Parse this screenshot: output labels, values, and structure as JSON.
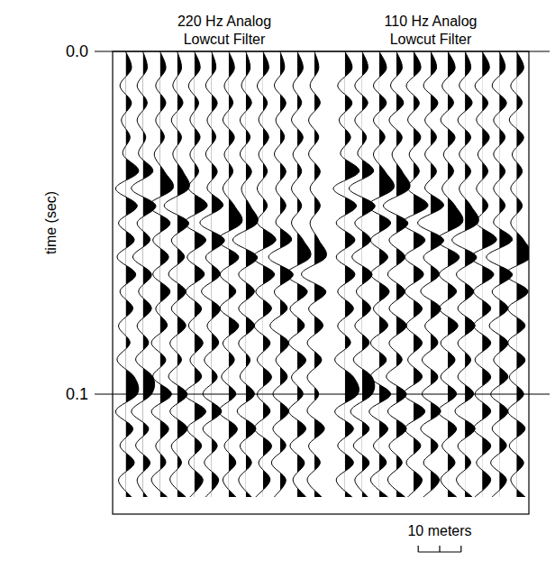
{
  "chart_data": {
    "type": "seismic",
    "y_label": "time (sec)",
    "ylim": [
      0,
      0.135
    ],
    "yticks": [
      {
        "value": 0,
        "label": "0.0"
      },
      0.1
    ],
    "grid": true,
    "time": [
      0,
      0.005,
      0.01,
      0.015,
      0.02,
      0.025,
      0.03,
      0.035,
      0.04,
      0.045,
      0.05,
      0.055,
      0.06,
      0.065,
      0.07,
      0.075,
      0.08,
      0.085,
      0.09,
      0.095,
      0.1,
      0.105,
      0.11,
      0.115,
      0.12,
      0.125,
      0.13
    ],
    "scale_bar": {
      "length": 10,
      "label": "10 meters"
    },
    "panels": [
      {
        "title": "220 Hz Analog Lowcut Filter",
        "xlim": [
          0,
          50
        ],
        "traces": [
          {
            "x": 2,
            "values": [
              0,
              0.4,
              -0.4,
              0.4,
              -0.3,
              0.3,
              -0.2,
              0.9,
              -0.7,
              0.8,
              -0.5,
              0.6,
              -0.6,
              0.7,
              -0.4,
              0.5,
              -0.5,
              0.3,
              -0.6,
              0.6,
              0.8,
              -0.7,
              0.5,
              -0.4,
              0.6,
              -0.5,
              0.4
            ]
          },
          {
            "x": 6,
            "values": [
              0,
              0.3,
              -0.4,
              0.3,
              -0.4,
              0.2,
              -0.3,
              0.7,
              -0.8,
              0.9,
              -0.4,
              0.5,
              -0.7,
              0.6,
              -0.3,
              0.6,
              -0.4,
              0.4,
              -0.5,
              0.7,
              0.6,
              -0.8,
              0.4,
              -0.5,
              0.5,
              -0.4,
              0.3
            ]
          },
          {
            "x": 10,
            "values": [
              0,
              0.4,
              -0.3,
              0.4,
              -0.3,
              0.3,
              -0.4,
              0.3,
              0.9,
              -0.8,
              0.7,
              -0.5,
              0.6,
              -0.5,
              0.7,
              -0.3,
              0.5,
              -0.6,
              0.4,
              -0.5,
              0.8,
              -0.6,
              0.6,
              -0.3,
              0.4,
              -0.6,
              0.5
            ]
          },
          {
            "x": 14,
            "values": [
              0,
              0.3,
              -0.3,
              0.4,
              -0.4,
              0.3,
              -0.3,
              0.4,
              0.8,
              -0.9,
              0.8,
              -0.4,
              0.5,
              -0.6,
              0.6,
              -0.4,
              0.6,
              -0.5,
              0.3,
              -0.6,
              0.7,
              -0.5,
              0.7,
              -0.4,
              0.3,
              -0.5,
              0.6
            ]
          },
          {
            "x": 18,
            "values": [
              0,
              0.4,
              -0.4,
              0.3,
              -0.3,
              0.4,
              -0.3,
              0.3,
              -0.4,
              0.9,
              -0.7,
              0.8,
              -0.5,
              0.7,
              -0.6,
              0.5,
              -0.4,
              0.6,
              -0.3,
              0.5,
              -0.7,
              0.8,
              -0.5,
              0.5,
              -0.4,
              0.6,
              -0.3
            ]
          },
          {
            "x": 22,
            "values": [
              0,
              0.3,
              -0.4,
              0.4,
              -0.3,
              0.3,
              -0.4,
              0.4,
              -0.3,
              0.8,
              -0.8,
              0.9,
              -0.4,
              0.6,
              -0.7,
              0.6,
              -0.3,
              0.5,
              -0.5,
              0.4,
              -0.6,
              0.7,
              -0.6,
              0.4,
              -0.5,
              0.5,
              -0.4
            ]
          },
          {
            "x": 26,
            "values": [
              0,
              0.4,
              -0.3,
              0.3,
              -0.4,
              0.4,
              -0.3,
              0.3,
              -0.4,
              0.4,
              0.9,
              -0.8,
              0.7,
              -0.6,
              0.5,
              -0.6,
              0.7,
              -0.4,
              0.4,
              -0.5,
              0.5,
              -0.7,
              0.6,
              -0.3,
              0.5,
              -0.4,
              0.5
            ]
          },
          {
            "x": 30,
            "values": [
              0,
              0.3,
              -0.3,
              0.4,
              -0.4,
              0.3,
              -0.4,
              0.4,
              -0.3,
              0.3,
              0.8,
              -0.9,
              0.8,
              -0.5,
              0.6,
              -0.5,
              0.6,
              -0.5,
              0.3,
              -0.4,
              0.6,
              -0.6,
              0.7,
              -0.4,
              0.4,
              -0.5,
              0.4
            ]
          },
          {
            "x": 34,
            "values": [
              0,
              0.4,
              -0.4,
              0.3,
              -0.3,
              0.4,
              -0.3,
              0.3,
              -0.4,
              0.3,
              -0.4,
              0.9,
              -0.7,
              0.8,
              -0.5,
              0.6,
              -0.6,
              0.5,
              -0.4,
              0.6,
              -0.4,
              0.5,
              -0.6,
              0.6,
              -0.3,
              0.5,
              -0.5
            ]
          },
          {
            "x": 38,
            "values": [
              0,
              0.3,
              -0.4,
              0.4,
              -0.3,
              0.3,
              -0.4,
              0.4,
              -0.3,
              0.4,
              -0.3,
              0.8,
              -0.8,
              0.9,
              -0.4,
              0.5,
              -0.7,
              0.6,
              -0.3,
              0.5,
              -0.5,
              0.6,
              -0.5,
              0.4,
              -0.6,
              0.4,
              -0.4
            ]
          },
          {
            "x": 42,
            "values": [
              0,
              0.4,
              -0.3,
              0.3,
              -0.4,
              0.4,
              -0.3,
              0.3,
              -0.4,
              0.3,
              -0.4,
              0.4,
              0.9,
              -0.8,
              0.7,
              -0.5,
              0.5,
              -0.6,
              0.6,
              -0.4,
              0.4,
              -0.6,
              0.6,
              -0.5,
              0.5,
              -0.3,
              0.6
            ]
          },
          {
            "x": 46,
            "values": [
              0,
              0.3,
              -0.3,
              0.4,
              -0.4,
              0.3,
              -0.4,
              0.4,
              -0.3,
              0.4,
              -0.3,
              0.3,
              0.8,
              -0.9,
              0.8,
              -0.4,
              0.6,
              -0.5,
              0.5,
              -0.5,
              0.3,
              -0.5,
              0.7,
              -0.4,
              0.4,
              -0.5,
              0.5
            ]
          }
        ]
      },
      {
        "title": "110 Hz Analog Lowcut Filter",
        "xlim": [
          0,
          42
        ],
        "traces": [
          {
            "x": 1,
            "values": [
              0,
              0.5,
              -0.5,
              0.5,
              -0.4,
              0.4,
              -0.3,
              1.0,
              -0.8,
              0.8,
              -0.6,
              0.7,
              -0.6,
              0.7,
              -0.5,
              0.6,
              -0.5,
              0.4,
              -0.7,
              0.6,
              0.9,
              -0.7,
              0.6,
              -0.5,
              0.6,
              -0.6,
              0.5
            ]
          },
          {
            "x": 5,
            "values": [
              0,
              0.4,
              -0.5,
              0.4,
              -0.5,
              0.3,
              -0.3,
              0.8,
              -0.9,
              0.9,
              -0.5,
              0.6,
              -0.7,
              0.7,
              -0.4,
              0.6,
              -0.5,
              0.5,
              -0.6,
              0.7,
              0.7,
              -0.8,
              0.5,
              -0.6,
              0.5,
              -0.5,
              0.4
            ]
          },
          {
            "x": 9,
            "values": [
              0,
              0.5,
              -0.4,
              0.5,
              -0.4,
              0.4,
              -0.4,
              0.4,
              1.0,
              -0.8,
              0.8,
              -0.6,
              0.6,
              -0.6,
              0.7,
              -0.4,
              0.6,
              -0.6,
              0.5,
              -0.6,
              0.8,
              -0.7,
              0.6,
              -0.4,
              0.5,
              -0.6,
              0.6
            ]
          },
          {
            "x": 13,
            "values": [
              0,
              0.4,
              -0.4,
              0.5,
              -0.5,
              0.4,
              -0.3,
              0.4,
              0.9,
              -0.9,
              0.8,
              -0.5,
              0.6,
              -0.6,
              0.6,
              -0.5,
              0.7,
              -0.5,
              0.4,
              -0.7,
              0.7,
              -0.6,
              0.7,
              -0.5,
              0.4,
              -0.6,
              0.6
            ]
          },
          {
            "x": 17,
            "values": [
              0,
              0.5,
              -0.5,
              0.4,
              -0.4,
              0.5,
              -0.3,
              0.4,
              -0.4,
              1.0,
              -0.8,
              0.8,
              -0.6,
              0.7,
              -0.6,
              0.6,
              -0.5,
              0.6,
              -0.4,
              0.6,
              -0.7,
              0.8,
              -0.6,
              0.5,
              -0.5,
              0.6,
              -0.4
            ]
          },
          {
            "x": 21,
            "values": [
              0,
              0.4,
              -0.5,
              0.5,
              -0.4,
              0.4,
              -0.4,
              0.4,
              -0.4,
              0.9,
              -0.9,
              0.9,
              -0.5,
              0.6,
              -0.7,
              0.7,
              -0.4,
              0.5,
              -0.6,
              0.5,
              -0.6,
              0.7,
              -0.7,
              0.5,
              -0.5,
              0.6,
              -0.5
            ]
          },
          {
            "x": 25,
            "values": [
              0,
              0.5,
              -0.4,
              0.4,
              -0.5,
              0.5,
              -0.3,
              0.4,
              -0.4,
              0.5,
              1.0,
              -0.8,
              0.8,
              -0.6,
              0.6,
              -0.6,
              0.7,
              -0.5,
              0.5,
              -0.5,
              0.6,
              -0.7,
              0.6,
              -0.4,
              0.5,
              -0.5,
              0.6
            ]
          },
          {
            "x": 29,
            "values": [
              0,
              0.4,
              -0.4,
              0.5,
              -0.5,
              0.4,
              -0.4,
              0.4,
              -0.4,
              0.4,
              0.9,
              -0.9,
              0.8,
              -0.6,
              0.6,
              -0.5,
              0.7,
              -0.5,
              0.4,
              -0.5,
              0.6,
              -0.7,
              0.7,
              -0.5,
              0.4,
              -0.6,
              0.5
            ]
          },
          {
            "x": 33,
            "values": [
              0,
              0.5,
              -0.5,
              0.4,
              -0.4,
              0.5,
              -0.3,
              0.4,
              -0.4,
              0.4,
              -0.4,
              1.0,
              -0.8,
              0.8,
              -0.6,
              0.6,
              -0.6,
              0.6,
              -0.5,
              0.6,
              -0.5,
              0.6,
              -0.6,
              0.6,
              -0.4,
              0.6,
              -0.5
            ]
          },
          {
            "x": 37,
            "values": [
              0,
              0.4,
              -0.5,
              0.5,
              -0.4,
              0.4,
              -0.4,
              0.4,
              -0.4,
              0.4,
              -0.4,
              0.9,
              -0.9,
              0.9,
              -0.5,
              0.6,
              -0.7,
              0.6,
              -0.4,
              0.6,
              -0.6,
              0.6,
              -0.5,
              0.5,
              -0.6,
              0.5,
              -0.5
            ]
          },
          {
            "x": 41,
            "values": [
              0,
              0.5,
              -0.4,
              0.4,
              -0.5,
              0.5,
              -0.3,
              0.4,
              -0.4,
              0.4,
              -0.4,
              0.5,
              1.0,
              -0.8,
              0.8,
              -0.6,
              0.6,
              -0.6,
              0.6,
              -0.5,
              0.5,
              -0.6,
              0.6,
              -0.5,
              0.5,
              -0.4,
              0.6
            ]
          }
        ]
      }
    ]
  }
}
